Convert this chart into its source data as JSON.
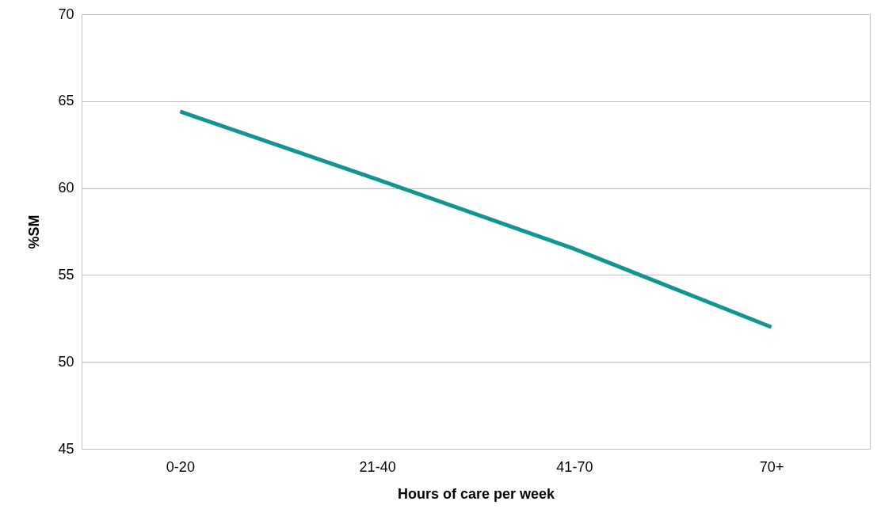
{
  "chart_data": {
    "type": "line",
    "xlabel": "Hours of care per week",
    "ylabel": "%SM",
    "categories": [
      "0-20",
      "21-40",
      "41-70",
      "70+"
    ],
    "series": [
      {
        "color": "#129490",
        "values": [
          64.4,
          60.5,
          56.5,
          52.0
        ]
      }
    ],
    "ylim": [
      45,
      70
    ],
    "yticks": [
      45,
      50,
      55,
      60,
      65,
      70
    ],
    "grid": "y",
    "marker": "none",
    "line_style": "solid"
  }
}
